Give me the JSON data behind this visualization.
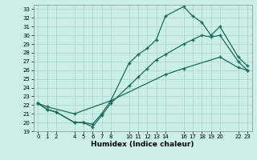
{
  "xlabel": "Humidex (Indice chaleur)",
  "background_color": "#cceee8",
  "grid_color": "#b0d8d0",
  "line_color": "#1a6b5a",
  "xlim": [
    -0.5,
    23.5
  ],
  "ylim": [
    19,
    33.5
  ],
  "xticks": [
    0,
    1,
    2,
    4,
    5,
    6,
    7,
    8,
    10,
    11,
    12,
    13,
    14,
    16,
    17,
    18,
    19,
    20,
    22,
    23
  ],
  "yticks": [
    19,
    20,
    21,
    22,
    23,
    24,
    25,
    26,
    27,
    28,
    29,
    30,
    31,
    32,
    33
  ],
  "line1_x": [
    0,
    1,
    2,
    4,
    5,
    6,
    7,
    8,
    10,
    11,
    12,
    13,
    14,
    16,
    17,
    18,
    19,
    20,
    22,
    23
  ],
  "line1_y": [
    22.2,
    21.5,
    21.2,
    20.0,
    20.0,
    19.8,
    21.0,
    22.5,
    26.8,
    27.8,
    28.5,
    29.5,
    32.2,
    33.3,
    32.2,
    31.5,
    30.0,
    31.0,
    27.5,
    26.5
  ],
  "line2_x": [
    0,
    1,
    2,
    4,
    5,
    6,
    7,
    8,
    10,
    11,
    12,
    13,
    14,
    16,
    17,
    18,
    19,
    20,
    22,
    23
  ],
  "line2_y": [
    22.2,
    21.5,
    21.2,
    20.0,
    20.0,
    19.5,
    20.8,
    22.2,
    24.2,
    25.2,
    26.2,
    27.2,
    27.8,
    29.0,
    29.5,
    30.0,
    29.8,
    30.0,
    27.0,
    26.0
  ],
  "line3_x": [
    0,
    1,
    4,
    8,
    14,
    16,
    20,
    22,
    23
  ],
  "line3_y": [
    22.2,
    21.8,
    21.0,
    22.5,
    25.5,
    26.2,
    27.5,
    26.3,
    26.0
  ]
}
